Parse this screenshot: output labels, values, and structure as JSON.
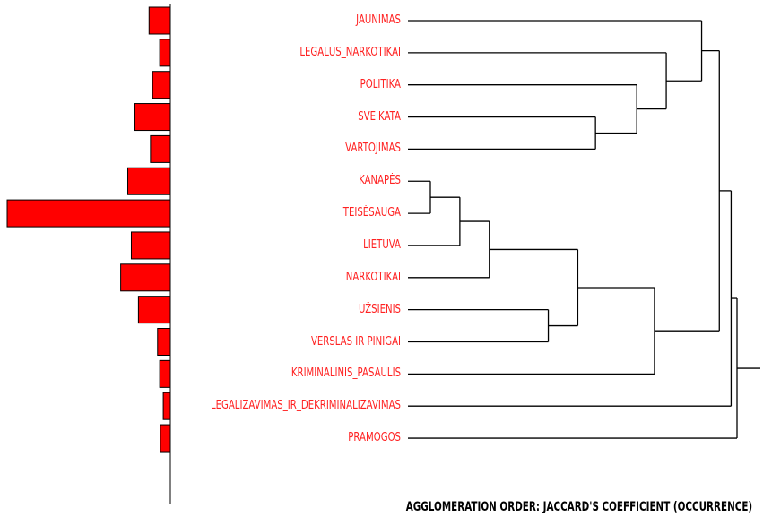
{
  "chart_data": {
    "type": "dendrogram",
    "items": [
      {
        "label": "JAUNIMAS",
        "frequency": 3
      },
      {
        "label": "LEGALŪS_NARKOTIKAI",
        "frequency": 1.5
      },
      {
        "label": "POLITIKA",
        "frequency": 2.5
      },
      {
        "label": "SVEIKATA",
        "frequency": 5
      },
      {
        "label": "VARTOJIMAS",
        "frequency": 2.8
      },
      {
        "label": "KANAPĖS",
        "frequency": 6
      },
      {
        "label": "TEISĖSAUGA",
        "frequency": 23
      },
      {
        "label": "LIETUVA",
        "frequency": 5.5
      },
      {
        "label": "NARKOTIKAI",
        "frequency": 7
      },
      {
        "label": "UŽSIENIS",
        "frequency": 4.5
      },
      {
        "label": "VERSLAS IR PINIGAI",
        "frequency": 1.8
      },
      {
        "label": "KRIMINALINIS_PASAULIS",
        "frequency": 1.5
      },
      {
        "label": "LEGALIZAVIMAS_IR_DEKRIMINALIZAVIMAS",
        "frequency": 1
      },
      {
        "label": "PRAMOGOS",
        "frequency": 1.4
      }
    ],
    "merges": [
      {
        "a": 5,
        "b": 6,
        "height": 0.6
      },
      {
        "a": 14,
        "b": 7,
        "height": 0.55
      },
      {
        "a": 15,
        "b": 8,
        "height": 0.5
      },
      {
        "a": 9,
        "b": 10,
        "height": 0.4
      },
      {
        "a": 16,
        "b": 17,
        "height": 0.35
      },
      {
        "a": 3,
        "b": 4,
        "height": 0.32
      },
      {
        "a": 2,
        "b": 19,
        "height": 0.25
      },
      {
        "a": 18,
        "b": 11,
        "height": 0.22
      },
      {
        "a": 1,
        "b": 20,
        "height": 0.2
      },
      {
        "a": 0,
        "b": 22,
        "height": 0.14
      },
      {
        "a": 23,
        "b": 21,
        "height": 0.11
      },
      {
        "a": 24,
        "b": 12,
        "height": 0.09
      },
      {
        "a": 25,
        "b": 13,
        "height": 0.08
      }
    ],
    "footer": "AGGLOMERATION ORDER: JACCARD'S COEFFICIENT (OCCURRENCE)"
  },
  "colors": {
    "bar_fill": "#ff0000",
    "label": "#ff2222",
    "line": "#000000"
  }
}
